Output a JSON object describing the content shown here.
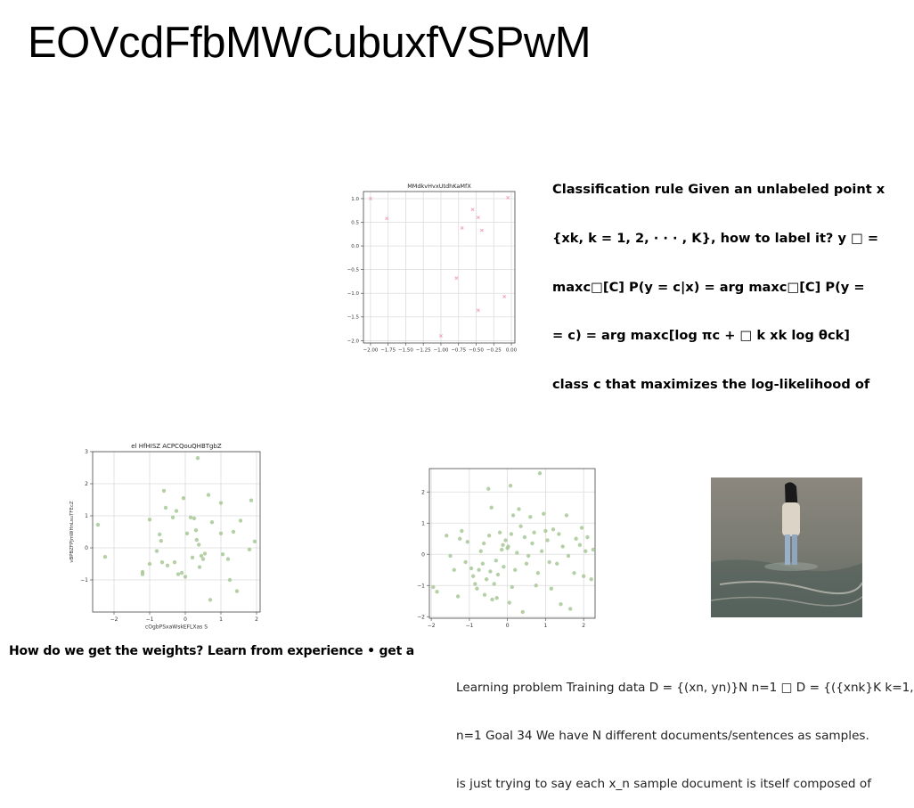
{
  "slide": {
    "title": "EOVcdFfbMWCubuxfVSPwM",
    "paragraph_lines": [
      "Classification rule Given an unlabeled point x",
      "{xk, k = 1, 2, · · · , K}, how to label it? y □ =",
      "maxc□[C] P(y = c|x) = arg maxc□[C] P(y =",
      "= c) = arg maxc[log πc + □ k xk log θck]",
      "class c that maximizes the log-likelihood of"
    ],
    "bold_note": "How do we get the weights? Learn from experience • get a",
    "light_note_lines": [
      "Learning problem Training data D = {(xn, yn)}N n=1 □ D = {({xnk}K k=1,",
      "n=1 Goal 34 We have N different documents/sentences as samples.",
      "is just trying to say each x_n sample document is itself composed of"
    ]
  },
  "photo": {
    "description_icon": "woman-walking-in-shallow-sea-photo",
    "colors": {
      "sky": "#8e8a82",
      "water": "#6d7068",
      "hair": "#1a1a1a",
      "jacket": "#d9cfc4",
      "jeans": "#9ab0c8"
    }
  },
  "chart_data": [
    {
      "type": "scatter",
      "title": "MMdkvHvxUtdhKaMfX",
      "xlabel": "",
      "ylabel": "",
      "xlim": [
        -2.1,
        0.05
      ],
      "ylim": [
        -2.05,
        1.15
      ],
      "xticks": [
        "−2.00",
        "−1.75",
        "−1.50",
        "−1.25",
        "−1.00",
        "−0.75",
        "−0.50",
        "−0.25",
        "0.00"
      ],
      "xtick_values": [
        -2.0,
        -1.75,
        -1.5,
        -1.25,
        -1.0,
        -0.75,
        -0.5,
        -0.25,
        0.0
      ],
      "yticks": [
        "1.0",
        "0.5",
        "0.0",
        "−0.5",
        "−1.0",
        "−1.5",
        "−2.0"
      ],
      "ytick_values": [
        1.0,
        0.5,
        0.0,
        -0.5,
        -1.0,
        -1.5,
        -2.0
      ],
      "grid": true,
      "color": "#f4a6b8",
      "marker": "x",
      "points": [
        [
          -2.0,
          1.0
        ],
        [
          -1.77,
          0.58
        ],
        [
          -0.55,
          0.77
        ],
        [
          -0.7,
          0.38
        ],
        [
          -0.47,
          0.6
        ],
        [
          -0.42,
          0.33
        ],
        [
          -0.05,
          1.02
        ],
        [
          -0.78,
          -0.68
        ],
        [
          -0.47,
          -1.36
        ],
        [
          -0.1,
          -1.07
        ],
        [
          -1.0,
          -1.9
        ]
      ]
    },
    {
      "type": "scatter",
      "title": "el HfHISZ ACPCQouQHBTgbZ",
      "xlabel": "cOgbPSxaWskEFLXas S",
      "ylabel": "vBPBZFPJmWHnLsuTFEcZ",
      "xlim": [
        -2.6,
        2.1
      ],
      "ylim": [
        -2.0,
        3.0
      ],
      "xticks": [
        "−2",
        "−1",
        "0",
        "1",
        "2"
      ],
      "xtick_values": [
        -2,
        -1,
        0,
        1,
        2
      ],
      "yticks": [
        "3",
        "2",
        "1",
        "0",
        "−1"
      ],
      "ytick_values": [
        3,
        2,
        1,
        0,
        -1
      ],
      "grid": true,
      "color": "#a8c898",
      "marker": "dot",
      "points": [
        [
          -2.45,
          0.72
        ],
        [
          -2.25,
          -0.28
        ],
        [
          -1.2,
          -0.75
        ],
        [
          -1.2,
          -0.82
        ],
        [
          -1.0,
          0.88
        ],
        [
          -1.0,
          -0.5
        ],
        [
          -0.8,
          -0.1
        ],
        [
          -0.72,
          0.42
        ],
        [
          -0.68,
          0.22
        ],
        [
          -0.65,
          -0.45
        ],
        [
          -0.6,
          1.78
        ],
        [
          -0.55,
          1.25
        ],
        [
          -0.5,
          -0.55
        ],
        [
          -0.35,
          0.95
        ],
        [
          -0.3,
          -0.45
        ],
        [
          -0.25,
          1.15
        ],
        [
          -0.2,
          -0.82
        ],
        [
          -0.1,
          -0.78
        ],
        [
          -0.05,
          1.55
        ],
        [
          0.0,
          -0.9
        ],
        [
          0.05,
          0.45
        ],
        [
          0.15,
          0.95
        ],
        [
          0.2,
          -0.3
        ],
        [
          0.25,
          0.92
        ],
        [
          0.3,
          0.55
        ],
        [
          0.32,
          0.25
        ],
        [
          0.35,
          2.8
        ],
        [
          0.38,
          0.1
        ],
        [
          0.4,
          -0.6
        ],
        [
          0.45,
          -0.25
        ],
        [
          0.5,
          -0.35
        ],
        [
          0.55,
          -0.18
        ],
        [
          0.65,
          1.65
        ],
        [
          0.7,
          -1.62
        ],
        [
          0.75,
          0.8
        ],
        [
          1.0,
          1.4
        ],
        [
          1.0,
          0.45
        ],
        [
          1.05,
          -0.2
        ],
        [
          1.2,
          -0.35
        ],
        [
          1.25,
          -1.0
        ],
        [
          1.35,
          0.5
        ],
        [
          1.45,
          -1.35
        ],
        [
          1.55,
          0.85
        ],
        [
          1.8,
          -0.05
        ],
        [
          1.85,
          1.48
        ],
        [
          1.95,
          0.2
        ]
      ]
    },
    {
      "type": "scatter",
      "title": "",
      "xlabel": "",
      "ylabel": "",
      "xlim": [
        -2.05,
        2.3
      ],
      "ylim": [
        -2.05,
        2.75
      ],
      "xticks": [
        "−2",
        "−1",
        "0",
        "1",
        "2"
      ],
      "xtick_values": [
        -2,
        -1,
        0,
        1,
        2
      ],
      "yticks": [
        "2",
        "1",
        "0",
        "−1",
        "−2"
      ],
      "ytick_values": [
        2,
        1,
        0,
        -1,
        -2
      ],
      "grid": true,
      "color": "#a8c898",
      "marker": "dot",
      "points": [
        [
          -1.95,
          -1.05
        ],
        [
          -1.85,
          -1.2
        ],
        [
          -1.6,
          0.6
        ],
        [
          -1.5,
          -0.05
        ],
        [
          -1.4,
          -0.5
        ],
        [
          -1.3,
          -1.35
        ],
        [
          -1.25,
          0.5
        ],
        [
          -1.2,
          0.75
        ],
        [
          -1.1,
          -0.25
        ],
        [
          -1.05,
          0.4
        ],
        [
          -0.95,
          -0.45
        ],
        [
          -0.9,
          -0.7
        ],
        [
          -0.85,
          -0.95
        ],
        [
          -0.8,
          -1.1
        ],
        [
          -0.75,
          -0.5
        ],
        [
          -0.7,
          0.1
        ],
        [
          -0.65,
          -0.3
        ],
        [
          -0.62,
          0.35
        ],
        [
          -0.6,
          -1.3
        ],
        [
          -0.55,
          -0.8
        ],
        [
          -0.5,
          2.1
        ],
        [
          -0.48,
          0.6
        ],
        [
          -0.45,
          -0.55
        ],
        [
          -0.42,
          1.5
        ],
        [
          -0.4,
          -1.45
        ],
        [
          -0.35,
          -0.95
        ],
        [
          -0.3,
          -0.2
        ],
        [
          -0.28,
          -1.4
        ],
        [
          -0.25,
          -0.65
        ],
        [
          -0.2,
          0.7
        ],
        [
          -0.15,
          0.15
        ],
        [
          -0.12,
          0.3
        ],
        [
          -0.1,
          -0.4
        ],
        [
          -0.05,
          0.45
        ],
        [
          0.0,
          0.2
        ],
        [
          0.02,
          0.25
        ],
        [
          0.05,
          -1.55
        ],
        [
          0.08,
          2.2
        ],
        [
          0.1,
          0.65
        ],
        [
          0.12,
          -1.05
        ],
        [
          0.15,
          1.25
        ],
        [
          0.2,
          -0.5
        ],
        [
          0.25,
          0.05
        ],
        [
          0.3,
          1.45
        ],
        [
          0.35,
          0.9
        ],
        [
          0.4,
          -1.85
        ],
        [
          0.45,
          0.55
        ],
        [
          0.5,
          -0.3
        ],
        [
          0.55,
          -0.05
        ],
        [
          0.6,
          1.2
        ],
        [
          0.65,
          0.35
        ],
        [
          0.7,
          0.7
        ],
        [
          0.75,
          -1.0
        ],
        [
          0.8,
          -0.6
        ],
        [
          0.85,
          2.6
        ],
        [
          0.9,
          0.1
        ],
        [
          0.95,
          1.3
        ],
        [
          1.0,
          0.75
        ],
        [
          1.05,
          0.45
        ],
        [
          1.1,
          -0.25
        ],
        [
          1.15,
          -1.1
        ],
        [
          1.2,
          0.8
        ],
        [
          1.3,
          -0.3
        ],
        [
          1.35,
          0.65
        ],
        [
          1.4,
          -1.6
        ],
        [
          1.45,
          0.25
        ],
        [
          1.55,
          1.25
        ],
        [
          1.6,
          -0.05
        ],
        [
          1.65,
          -1.75
        ],
        [
          1.75,
          -0.6
        ],
        [
          1.8,
          0.5
        ],
        [
          1.9,
          0.3
        ],
        [
          1.95,
          0.85
        ],
        [
          2.0,
          -0.7
        ],
        [
          2.05,
          0.1
        ],
        [
          2.1,
          0.55
        ],
        [
          2.2,
          -0.8
        ],
        [
          2.25,
          0.15
        ]
      ]
    }
  ]
}
